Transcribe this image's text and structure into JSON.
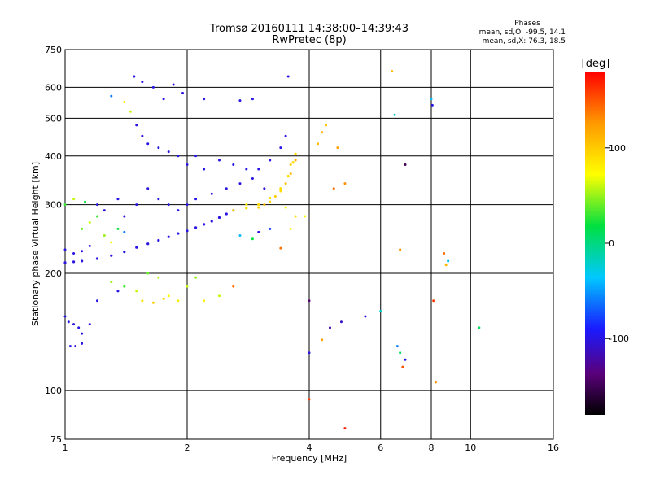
{
  "chart_data": {
    "type": "scatter",
    "title": "Tromsø 20160111 14:38:00–14:39:43",
    "subtitle": "RwPretec (8p)",
    "xlabel": "Frequency [MHz]",
    "ylabel": "Stationary phase Virtual Height [km]",
    "x_scale": "log",
    "y_scale": "log",
    "xlim": [
      1,
      16
    ],
    "ylim": [
      75,
      750
    ],
    "x_ticks": [
      1,
      2,
      4,
      6,
      8,
      10,
      16
    ],
    "x_tick_labels": [
      "1",
      "2",
      "4",
      "6",
      "8",
      "10",
      "16"
    ],
    "y_ticks": [
      75,
      100,
      200,
      300,
      400,
      500,
      600,
      750
    ],
    "y_tick_labels": [
      "75",
      "100",
      "200",
      "300",
      "400",
      "500",
      "600",
      "750"
    ],
    "grid": true,
    "stats": {
      "heading": "Phases",
      "line_o": "mean, sd,O: -99.5, 14.1",
      "line_x": "mean, sd,X:  76.3, 18.5"
    },
    "colorbar": {
      "label": "[deg]",
      "range": [
        -180,
        180
      ],
      "ticks": [
        -100,
        0,
        100
      ],
      "tick_labels": [
        "-100",
        "0",
        "100"
      ]
    },
    "traces": [
      {
        "name": "o_trace",
        "color_value": -100,
        "points": [
          [
            1.0,
            213
          ],
          [
            1.05,
            214
          ],
          [
            1.1,
            215
          ],
          [
            1.2,
            218
          ],
          [
            1.3,
            222
          ],
          [
            1.4,
            227
          ],
          [
            1.5,
            233
          ],
          [
            1.6,
            238
          ],
          [
            1.7,
            243
          ],
          [
            1.8,
            248
          ],
          [
            1.9,
            253
          ],
          [
            2.0,
            257
          ],
          [
            2.1,
            262
          ],
          [
            2.2,
            267
          ],
          [
            2.3,
            272
          ],
          [
            2.4,
            278
          ],
          [
            2.5,
            284
          ],
          [
            2.6,
            290
          ]
        ]
      },
      {
        "name": "x_trace",
        "color_value": 90,
        "points": [
          [
            2.6,
            290
          ],
          [
            2.8,
            294
          ],
          [
            3.0,
            300
          ],
          [
            3.2,
            312
          ],
          [
            3.4,
            330
          ],
          [
            3.55,
            355
          ],
          [
            3.65,
            385
          ],
          [
            3.7,
            405
          ]
        ]
      }
    ],
    "scatter_points": [
      [
        1.48,
        640,
        -100
      ],
      [
        1.55,
        620,
        -100
      ],
      [
        1.65,
        600,
        -100
      ],
      [
        1.75,
        560,
        -100
      ],
      [
        1.85,
        610,
        -100
      ],
      [
        1.95,
        580,
        -100
      ],
      [
        2.2,
        560,
        -100
      ],
      [
        2.7,
        555,
        -100
      ],
      [
        2.9,
        560,
        -100
      ],
      [
        3.55,
        640,
        -100
      ],
      [
        1.3,
        570,
        -60
      ],
      [
        1.4,
        550,
        80
      ],
      [
        1.45,
        520,
        60
      ],
      [
        1.5,
        480,
        -100
      ],
      [
        1.55,
        450,
        -100
      ],
      [
        1.6,
        430,
        -100
      ],
      [
        1.7,
        420,
        -100
      ],
      [
        1.8,
        410,
        -100
      ],
      [
        1.9,
        400,
        -100
      ],
      [
        2.0,
        380,
        -100
      ],
      [
        2.1,
        400,
        -100
      ],
      [
        2.2,
        370,
        -100
      ],
      [
        2.4,
        390,
        -100
      ],
      [
        2.6,
        380,
        -100
      ],
      [
        2.8,
        370,
        -100
      ],
      [
        3.0,
        370,
        -100
      ],
      [
        3.2,
        390,
        -100
      ],
      [
        3.4,
        420,
        -100
      ],
      [
        3.5,
        450,
        -100
      ],
      [
        1.2,
        300,
        -100
      ],
      [
        1.25,
        290,
        -100
      ],
      [
        1.35,
        310,
        -100
      ],
      [
        1.4,
        280,
        -100
      ],
      [
        1.5,
        300,
        -100
      ],
      [
        1.6,
        330,
        -100
      ],
      [
        1.7,
        310,
        -100
      ],
      [
        1.8,
        300,
        -100
      ],
      [
        1.9,
        290,
        -100
      ],
      [
        2.0,
        300,
        -100
      ],
      [
        2.1,
        310,
        -100
      ],
      [
        2.3,
        320,
        -100
      ],
      [
        2.5,
        330,
        -100
      ],
      [
        2.7,
        340,
        -100
      ],
      [
        2.9,
        350,
        -100
      ],
      [
        3.1,
        330,
        -100
      ],
      [
        1.1,
        260,
        40
      ],
      [
        1.15,
        270,
        60
      ],
      [
        1.2,
        280,
        30
      ],
      [
        1.25,
        250,
        50
      ],
      [
        1.3,
        240,
        70
      ],
      [
        1.35,
        260,
        20
      ],
      [
        1.4,
        255,
        -60
      ],
      [
        1.0,
        230,
        -100
      ],
      [
        1.05,
        225,
        -100
      ],
      [
        1.1,
        228,
        -100
      ],
      [
        1.15,
        235,
        -100
      ],
      [
        1.0,
        300,
        30
      ],
      [
        1.05,
        310,
        60
      ],
      [
        1.12,
        305,
        20
      ],
      [
        3.0,
        295,
        100
      ],
      [
        3.1,
        300,
        110
      ],
      [
        3.2,
        305,
        95
      ],
      [
        3.3,
        315,
        100
      ],
      [
        3.4,
        325,
        90
      ],
      [
        3.5,
        340,
        105
      ],
      [
        3.6,
        360,
        110
      ],
      [
        3.6,
        380,
        100
      ],
      [
        3.7,
        390,
        115
      ],
      [
        2.8,
        300,
        80
      ],
      [
        3.5,
        295,
        70
      ],
      [
        1.3,
        190,
        50
      ],
      [
        1.4,
        185,
        30
      ],
      [
        1.5,
        180,
        60
      ],
      [
        1.6,
        200,
        40
      ],
      [
        1.7,
        195,
        55
      ],
      [
        1.8,
        175,
        70
      ],
      [
        1.9,
        170,
        80
      ],
      [
        2.0,
        185,
        60
      ],
      [
        2.1,
        195,
        50
      ],
      [
        1.55,
        170,
        90
      ],
      [
        1.65,
        168,
        100
      ],
      [
        1.75,
        172,
        95
      ],
      [
        2.2,
        170,
        80
      ],
      [
        2.4,
        175,
        60
      ],
      [
        2.6,
        185,
        140
      ],
      [
        1.0,
        155,
        -100
      ],
      [
        1.02,
        150,
        -100
      ],
      [
        1.05,
        148,
        -100
      ],
      [
        1.08,
        145,
        -100
      ],
      [
        1.1,
        140,
        -100
      ],
      [
        1.15,
        148,
        -100
      ],
      [
        1.03,
        130,
        -100
      ],
      [
        1.06,
        130,
        -100
      ],
      [
        1.1,
        132,
        -100
      ],
      [
        1.35,
        180,
        -100
      ],
      [
        1.2,
        170,
        -100
      ],
      [
        2.7,
        250,
        -40
      ],
      [
        2.9,
        245,
        20
      ],
      [
        3.0,
        255,
        -100
      ],
      [
        3.2,
        260,
        -80
      ],
      [
        3.4,
        232,
        140
      ],
      [
        3.6,
        260,
        70
      ],
      [
        3.7,
        280,
        90
      ],
      [
        3.9,
        280,
        70
      ],
      [
        4.2,
        430,
        110
      ],
      [
        4.3,
        460,
        110
      ],
      [
        4.4,
        480,
        100
      ],
      [
        4.6,
        330,
        140
      ],
      [
        4.7,
        420,
        120
      ],
      [
        4.9,
        340,
        130
      ],
      [
        4.0,
        170,
        -140
      ],
      [
        4.0,
        125,
        -100
      ],
      [
        4.5,
        145,
        -120
      ],
      [
        4.8,
        150,
        -110
      ],
      [
        5.5,
        155,
        -100
      ],
      [
        6.0,
        160,
        -20
      ],
      [
        4.0,
        95,
        160
      ],
      [
        4.9,
        80,
        170
      ],
      [
        4.3,
        135,
        120
      ],
      [
        6.4,
        660,
        110
      ],
      [
        6.5,
        510,
        -20
      ],
      [
        6.7,
        230,
        130
      ],
      [
        6.9,
        380,
        -150
      ],
      [
        8.0,
        560,
        -40
      ],
      [
        8.05,
        540,
        -100
      ],
      [
        8.1,
        170,
        160
      ],
      [
        8.2,
        105,
        130
      ],
      [
        6.6,
        130,
        -60
      ],
      [
        6.7,
        125,
        10
      ],
      [
        6.8,
        115,
        150
      ],
      [
        6.9,
        120,
        -100
      ],
      [
        8.6,
        225,
        140
      ],
      [
        8.7,
        210,
        110
      ],
      [
        8.8,
        215,
        -40
      ],
      [
        10.5,
        145,
        10
      ]
    ]
  }
}
